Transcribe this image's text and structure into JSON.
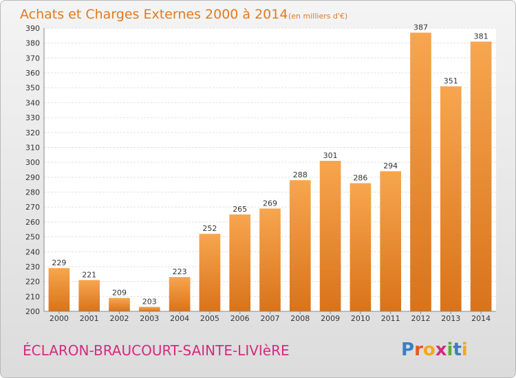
{
  "chart_data": {
    "type": "bar",
    "title": "Achats et Charges Externes 2000 à 2014",
    "subtitle": "(en milliers d'€)",
    "categories": [
      "2000",
      "2001",
      "2002",
      "2003",
      "2004",
      "2005",
      "2006",
      "2007",
      "2008",
      "2009",
      "2010",
      "2011",
      "2012",
      "2013",
      "2014"
    ],
    "values": [
      229,
      221,
      209,
      203,
      223,
      252,
      265,
      269,
      288,
      301,
      286,
      294,
      387,
      351,
      381
    ],
    "ylim": [
      200,
      390
    ],
    "ytick_step": 10,
    "grid": true,
    "xlabel": "",
    "ylabel": "",
    "bar_color_top": "#f7a64f",
    "bar_color_bottom": "#d9731a"
  },
  "footer": {
    "commune": "ÉCLARON-BRAUCOURT-SAINTE-LIVIèRE",
    "logo_letters": [
      "P",
      "r",
      "o",
      "x",
      "i",
      "t",
      "i"
    ],
    "logo_colors": [
      "#3a7fc4",
      "#e8581c",
      "#f2a81d",
      "#d62a7e",
      "#5fae2e",
      "#3a7fc4",
      "#f2a81d"
    ]
  }
}
